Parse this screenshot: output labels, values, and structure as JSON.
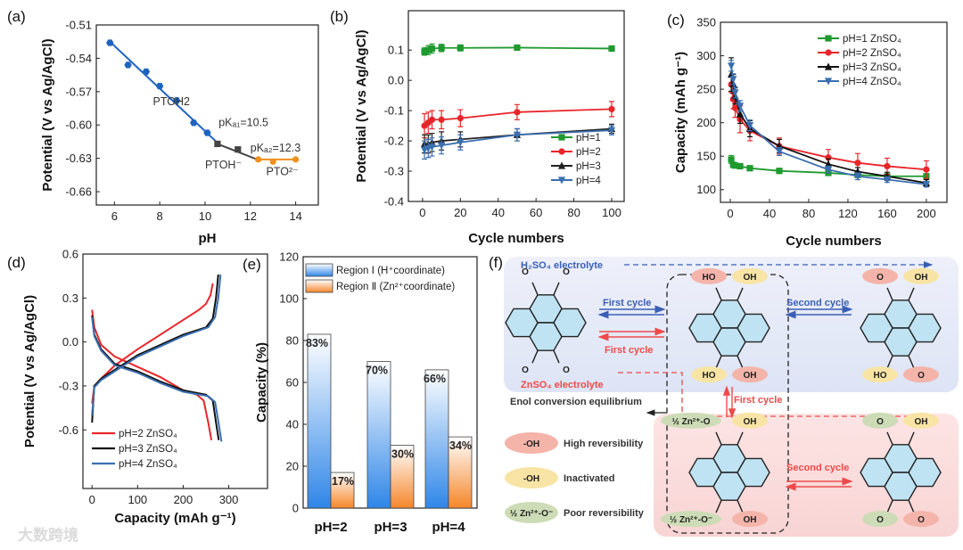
{
  "watermark": "大数跨境",
  "chart_data": [
    {
      "panel": "(a)",
      "type": "line+scatter",
      "xlabel": "pH",
      "ylabel": "Potential (V vs Ag/AgCl)",
      "xlim": [
        5.2,
        15
      ],
      "ylim": [
        -0.672,
        -0.51
      ],
      "xticks": [
        "6",
        "8",
        "10",
        "12",
        "14"
      ],
      "yticks": [
        "-0.51",
        "-0.54",
        "-0.57",
        "-0.60",
        "-0.63",
        "-0.66"
      ],
      "series": [
        {
          "name": "PTOH2",
          "color": "#1f63c0",
          "marker": "hex",
          "points": [
            [
              5.8,
              -0.526
            ],
            [
              6.6,
              -0.546
            ],
            [
              7.4,
              -0.552
            ],
            [
              8.0,
              -0.565
            ],
            [
              8.75,
              -0.578
            ],
            [
              9.5,
              -0.598
            ],
            [
              10.1,
              -0.607
            ]
          ],
          "fit": [
            [
              5.8,
              -0.525
            ],
            [
              10.6,
              -0.617
            ]
          ]
        },
        {
          "name": "PTOH-",
          "color": "#444444",
          "marker": "square",
          "points": [
            [
              10.55,
              -0.617
            ],
            [
              11.45,
              -0.622
            ]
          ],
          "fit": [
            [
              10.55,
              -0.617
            ],
            [
              12.3,
              -0.631
            ]
          ]
        },
        {
          "name": "PTO2-",
          "color": "#f0901e",
          "marker": "circle",
          "points": [
            [
              12.35,
              -0.631
            ],
            [
              13.0,
              -0.633
            ],
            [
              14.0,
              -0.631
            ]
          ],
          "fit": [
            [
              12.35,
              -0.631
            ],
            [
              14.0,
              -0.631
            ]
          ]
        }
      ],
      "annotations": [
        {
          "text": "PTOH2",
          "at": [
            7.7,
            -0.582
          ]
        },
        {
          "text": "pKₐ₁=10.5",
          "at": [
            10.6,
            -0.601
          ]
        },
        {
          "text": "pKₐ₂=12.3",
          "at": [
            12.0,
            -0.624
          ]
        },
        {
          "text": "PTOH⁻",
          "at": [
            10.0,
            -0.639
          ]
        },
        {
          "text": "PTO²⁻",
          "at": [
            12.7,
            -0.645
          ]
        }
      ]
    },
    {
      "panel": "(b)",
      "type": "line",
      "xlabel": "Cycle numbers",
      "ylabel": "Potential (V vs Ag/AgCl)",
      "xlim": [
        -7.5,
        106.6
      ],
      "ylim": [
        -0.4,
        0.23
      ],
      "xticks": [
        "0",
        "20",
        "40",
        "60",
        "80",
        "100"
      ],
      "yticks": [
        "0.1",
        "0.0",
        "-0.1",
        "-0.2",
        "-0.3",
        "-0.4"
      ],
      "legend": "bottom-right",
      "x": [
        1,
        3,
        5,
        10,
        20,
        50,
        100
      ],
      "series": [
        {
          "name": "pH=1",
          "color": "#1e9a2e",
          "marker": "square",
          "values": [
            0.095,
            0.1,
            0.105,
            0.107,
            0.107,
            0.108,
            0.105
          ],
          "err": [
            0.012,
            0.015,
            0.015,
            0.012,
            0.01,
            0.008,
            0.008
          ]
        },
        {
          "name": "pH=2",
          "color": "#e8262a",
          "marker": "circle",
          "values": [
            -0.15,
            -0.14,
            -0.13,
            -0.13,
            -0.125,
            -0.105,
            -0.095
          ],
          "err": [
            0.04,
            0.035,
            0.03,
            0.03,
            0.028,
            0.025,
            0.025
          ]
        },
        {
          "name": "pH=3",
          "color": "#222222",
          "marker": "triangle",
          "values": [
            -0.21,
            -0.21,
            -0.205,
            -0.2,
            -0.195,
            -0.18,
            -0.16
          ],
          "err": [
            0.03,
            0.03,
            0.03,
            0.03,
            0.025,
            0.02,
            0.015
          ]
        },
        {
          "name": "pH=4",
          "color": "#3b6fb0",
          "marker": "tri-down",
          "values": [
            -0.23,
            -0.225,
            -0.22,
            -0.215,
            -0.205,
            -0.18,
            -0.165
          ],
          "err": [
            0.03,
            0.03,
            0.03,
            0.028,
            0.025,
            0.02,
            0.015
          ]
        }
      ]
    },
    {
      "panel": "(c)",
      "type": "line",
      "xlabel": "Cycle numbers",
      "ylabel": "Capacity (mAh g⁻¹)",
      "xlim": [
        -10,
        221
      ],
      "ylim": [
        81,
        350
      ],
      "xticks": [
        "0",
        "40",
        "80",
        "120",
        "160",
        "200"
      ],
      "yticks": [
        "350",
        "300",
        "250",
        "200",
        "150",
        "100"
      ],
      "legend": "top-right",
      "x": [
        1,
        3,
        5,
        10,
        20,
        50,
        100,
        130,
        160,
        200
      ],
      "series": [
        {
          "name": "pH=1 ZnSO₄",
          "color": "#1e9a2e",
          "marker": "square",
          "values": [
            145,
            137,
            136,
            135,
            132,
            128,
            125,
            122,
            120,
            120
          ],
          "err": [
            6,
            3,
            2,
            2,
            2,
            2,
            2,
            2,
            2,
            2
          ]
        },
        {
          "name": "pH=2 ZnSO₄",
          "color": "#e8262a",
          "marker": "circle",
          "values": [
            257,
            235,
            222,
            205,
            188,
            165,
            148,
            140,
            135,
            130
          ],
          "err": [
            12,
            14,
            14,
            20,
            15,
            12,
            12,
            14,
            12,
            13
          ]
        },
        {
          "name": "pH=3 ZnSO₄",
          "color": "#111111",
          "marker": "triangle",
          "values": [
            272,
            258,
            240,
            213,
            191,
            165,
            138,
            127,
            120,
            110
          ],
          "err": [
            25,
            14,
            12,
            14,
            12,
            10,
            8,
            6,
            6,
            5
          ]
        },
        {
          "name": "pH=4 ZnSO₄",
          "color": "#3b6fb0",
          "marker": "tri-down",
          "values": [
            285,
            265,
            245,
            225,
            196,
            157,
            130,
            120,
            115,
            108
          ],
          "err": [
            8,
            8,
            8,
            8,
            8,
            6,
            5,
            5,
            4,
            4
          ]
        }
      ]
    },
    {
      "panel": "(d)",
      "type": "line",
      "xlabel": "Capacity (mAh g⁻¹)",
      "ylabel": "Potential (V vs Ag/AgCl)",
      "xlim": [
        -20,
        385
      ],
      "ylim": [
        -1.0,
        0.6
      ],
      "xticks": [
        "0",
        "100",
        "200",
        "300"
      ],
      "yticks": [
        "0.6",
        "0.3",
        "0.0",
        "-0.3",
        "-0.6"
      ],
      "legend": "bottom-left",
      "series": [
        {
          "name": "pH=2 ZnSO₄",
          "color": "#e8262a",
          "discharge": [
            [
              0,
              0.22
            ],
            [
              5,
              0.1
            ],
            [
              20,
              -0.02
            ],
            [
              50,
              -0.1
            ],
            [
              100,
              -0.17
            ],
            [
              150,
              -0.24
            ],
            [
              200,
              -0.33
            ],
            [
              230,
              -0.36
            ],
            [
              245,
              -0.4
            ],
            [
              255,
              -0.55
            ],
            [
              262,
              -0.67
            ]
          ],
          "charge": [
            [
              0,
              -0.42
            ],
            [
              5,
              -0.3
            ],
            [
              20,
              -0.25
            ],
            [
              50,
              -0.16
            ],
            [
              100,
              -0.05
            ],
            [
              150,
              0.05
            ],
            [
              200,
              0.15
            ],
            [
              235,
              0.22
            ],
            [
              250,
              0.26
            ],
            [
              260,
              0.32
            ],
            [
              265,
              0.4
            ]
          ]
        },
        {
          "name": "pH=3 ZnSO₄",
          "color": "#111111",
          "discharge": [
            [
              0,
              0.18
            ],
            [
              5,
              0.05
            ],
            [
              20,
              -0.05
            ],
            [
              50,
              -0.15
            ],
            [
              100,
              -0.2
            ],
            [
              150,
              -0.27
            ],
            [
              200,
              -0.33
            ],
            [
              250,
              -0.36
            ],
            [
              265,
              -0.4
            ],
            [
              272,
              -0.55
            ],
            [
              278,
              -0.67
            ]
          ],
          "charge": [
            [
              0,
              -0.55
            ],
            [
              5,
              -0.3
            ],
            [
              20,
              -0.25
            ],
            [
              50,
              -0.19
            ],
            [
              100,
              -0.09
            ],
            [
              150,
              -0.02
            ],
            [
              200,
              0.05
            ],
            [
              250,
              0.1
            ],
            [
              265,
              0.16
            ],
            [
              272,
              0.3
            ],
            [
              277,
              0.46
            ]
          ]
        },
        {
          "name": "pH=4 ZnSO₄",
          "color": "#3b6fb0",
          "discharge": [
            [
              0,
              0.17
            ],
            [
              5,
              0.04
            ],
            [
              20,
              -0.06
            ],
            [
              50,
              -0.16
            ],
            [
              100,
              -0.21
            ],
            [
              150,
              -0.28
            ],
            [
              200,
              -0.34
            ],
            [
              255,
              -0.37
            ],
            [
              270,
              -0.41
            ],
            [
              278,
              -0.56
            ],
            [
              284,
              -0.68
            ]
          ],
          "charge": [
            [
              0,
              -0.5
            ],
            [
              5,
              -0.31
            ],
            [
              20,
              -0.26
            ],
            [
              50,
              -0.2
            ],
            [
              100,
              -0.1
            ],
            [
              150,
              -0.03
            ],
            [
              200,
              0.04
            ],
            [
              255,
              0.1
            ],
            [
              270,
              0.17
            ],
            [
              277,
              0.3
            ],
            [
              282,
              0.46
            ]
          ]
        }
      ]
    },
    {
      "panel": "(e)",
      "type": "bar",
      "xlabel": "",
      "ylabel": "Capacity (%)",
      "ylim": [
        0,
        120
      ],
      "yticks": [
        "120",
        "100",
        "80",
        "60",
        "40",
        "20",
        "0"
      ],
      "legend": "top-left",
      "categories": [
        "pH=2",
        "pH=3",
        "pH=4"
      ],
      "series": [
        {
          "name": "Region Ⅰ (H⁺coordinate)",
          "color": "#2f86e8",
          "values": [
            83,
            70,
            66
          ],
          "labels": [
            "83%",
            "70%",
            "66%"
          ]
        },
        {
          "name": "Region Ⅱ (Zn²⁺coordinate)",
          "color": "#f5862a",
          "values": [
            17,
            30,
            34
          ],
          "labels": [
            "17%",
            "30%",
            "34%"
          ]
        }
      ]
    }
  ],
  "diagram": {
    "panel": "(f)",
    "h2so4": "H₂SO₄ electrolyte",
    "znso4": "ZnSO₄ electrolyte",
    "first_cycle": "First cycle",
    "second_cycle": "Second cycle",
    "enol": "Enol conversion equilibrium",
    "legend": [
      {
        "chip": "-OH",
        "label": "High reversibility",
        "color": "#f4b4aa"
      },
      {
        "chip": "-OH",
        "label": "Inactivated",
        "color": "#f8e4a4"
      },
      {
        "chip": "½ Zn²⁺-O⁻",
        "label": "Poor reversibility",
        "color": "#cddcb6"
      }
    ],
    "subst": {
      "o": "O",
      "oh": "OH",
      "ho": "HO",
      "zn": "½ Zn²⁺-O",
      "zn2": "½ Zn²⁺-O⁻"
    }
  }
}
